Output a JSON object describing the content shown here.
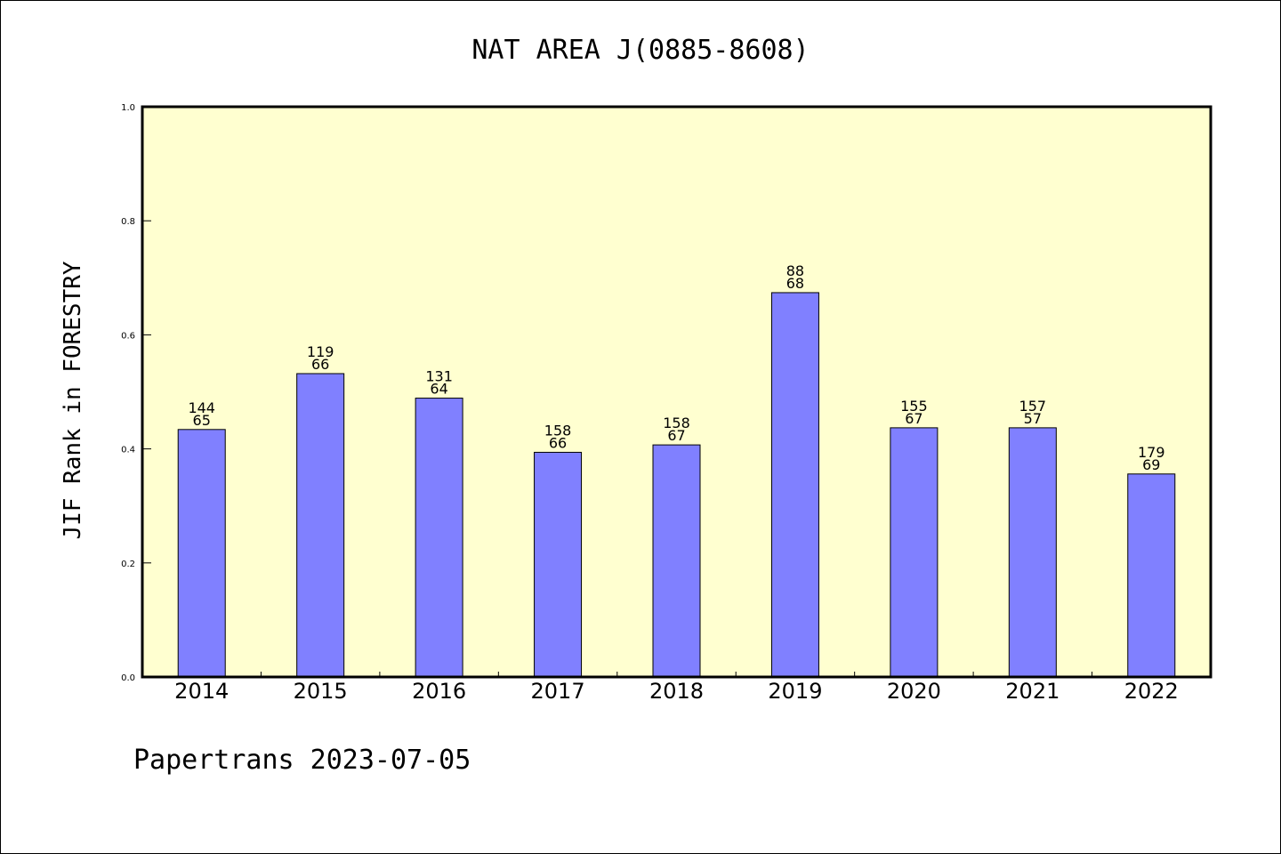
{
  "chart_data": {
    "type": "bar",
    "title": "NAT AREA J(0885-8608)",
    "ylabel": "JIF Rank in FORESTRY",
    "xlabel": "",
    "ylim": [
      0,
      1.0
    ],
    "yticks": [
      "0.0",
      "0.2",
      "0.4",
      "0.6",
      "0.8",
      "1.0"
    ],
    "categories": [
      "2014",
      "2015",
      "2016",
      "2017",
      "2018",
      "2019",
      "2020",
      "2021",
      "2022"
    ],
    "values": [
      0.434,
      0.532,
      0.489,
      0.394,
      0.407,
      0.674,
      0.437,
      0.437,
      0.356
    ],
    "labels_top": [
      "144",
      "119",
      "131",
      "158",
      "158",
      "88",
      "155",
      "157",
      "179"
    ],
    "labels_bottom": [
      "65",
      "66",
      "64",
      "66",
      "67",
      "68",
      "67",
      "57",
      "69"
    ],
    "grid": false,
    "colors": {
      "bar": "#8080ff",
      "plot_bg": "#ffffd0",
      "axis": "#000000"
    }
  },
  "footer": "Papertrans 2023-07-05"
}
